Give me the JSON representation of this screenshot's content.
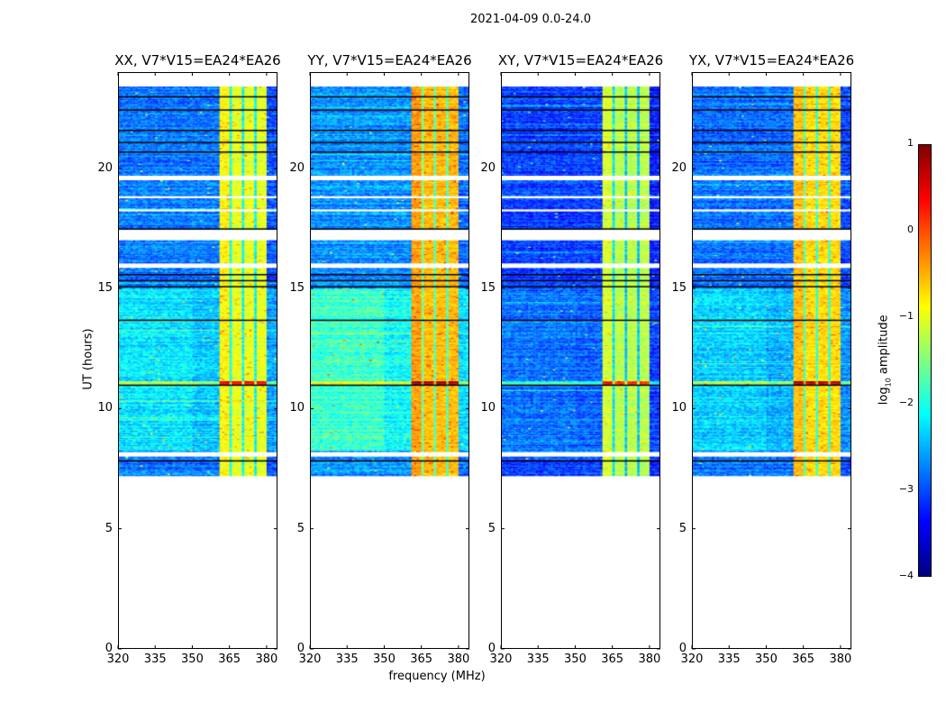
{
  "chart_data": {
    "type": "heatmap",
    "title": "2021-04-09 0.0-24.0",
    "xlabel": "frequency (MHz)",
    "ylabel": "UT (hours)",
    "xlim": [
      320,
      384.4
    ],
    "ylim": [
      0,
      24
    ],
    "xticks": [
      "320",
      "335",
      "350",
      "365",
      "380"
    ],
    "yticks": [
      "0",
      "5",
      "10",
      "15",
      "20"
    ],
    "data_time_range_hours": [
      7.2,
      23.4
    ],
    "bright_band_mhz": [
      361,
      380
    ],
    "band_notch_channels_mhz": [
      365.5,
      370.5,
      375.5
    ],
    "flagged_gaps_hours": [
      [
        19.5,
        19.7
      ],
      [
        18.75,
        18.85
      ],
      [
        18.2,
        18.3
      ],
      [
        16.99,
        17.45
      ],
      [
        15.85,
        16.05
      ],
      [
        7.95,
        8.2
      ]
    ],
    "black_rows_hours": [
      23.0,
      22.45,
      21.6,
      21.1,
      20.7,
      17.5,
      15.6,
      15.35,
      15.1,
      13.7,
      11.0,
      7.85
    ],
    "rfi_row_hours": 11.05,
    "panels": [
      {
        "title": "XX, V7*V15=EA24*EA26",
        "low_level": -2.8,
        "mid_boost": 0.55,
        "band_level": -1.0,
        "seed": 11
      },
      {
        "title": "YY, V7*V15=EA24*EA26",
        "low_level": -2.7,
        "mid_boost": 0.85,
        "band_level": -0.55,
        "seed": 23
      },
      {
        "title": "XY, V7*V15=EA24*EA26",
        "low_level": -3.1,
        "mid_boost": 0.25,
        "band_level": -1.25,
        "seed": 37
      },
      {
        "title": "YX, V7*V15=EA24*EA26",
        "low_level": -2.85,
        "mid_boost": 0.5,
        "band_level": -0.7,
        "seed": 41
      }
    ],
    "colorbar": {
      "label_prefix": "log",
      "label_sub": "10",
      "label_suffix": " amplitude",
      "range": [
        -4,
        1
      ],
      "ticks": [
        "1",
        "0",
        "−1",
        "−2",
        "−3",
        "−4"
      ],
      "colormap": "jet"
    }
  }
}
